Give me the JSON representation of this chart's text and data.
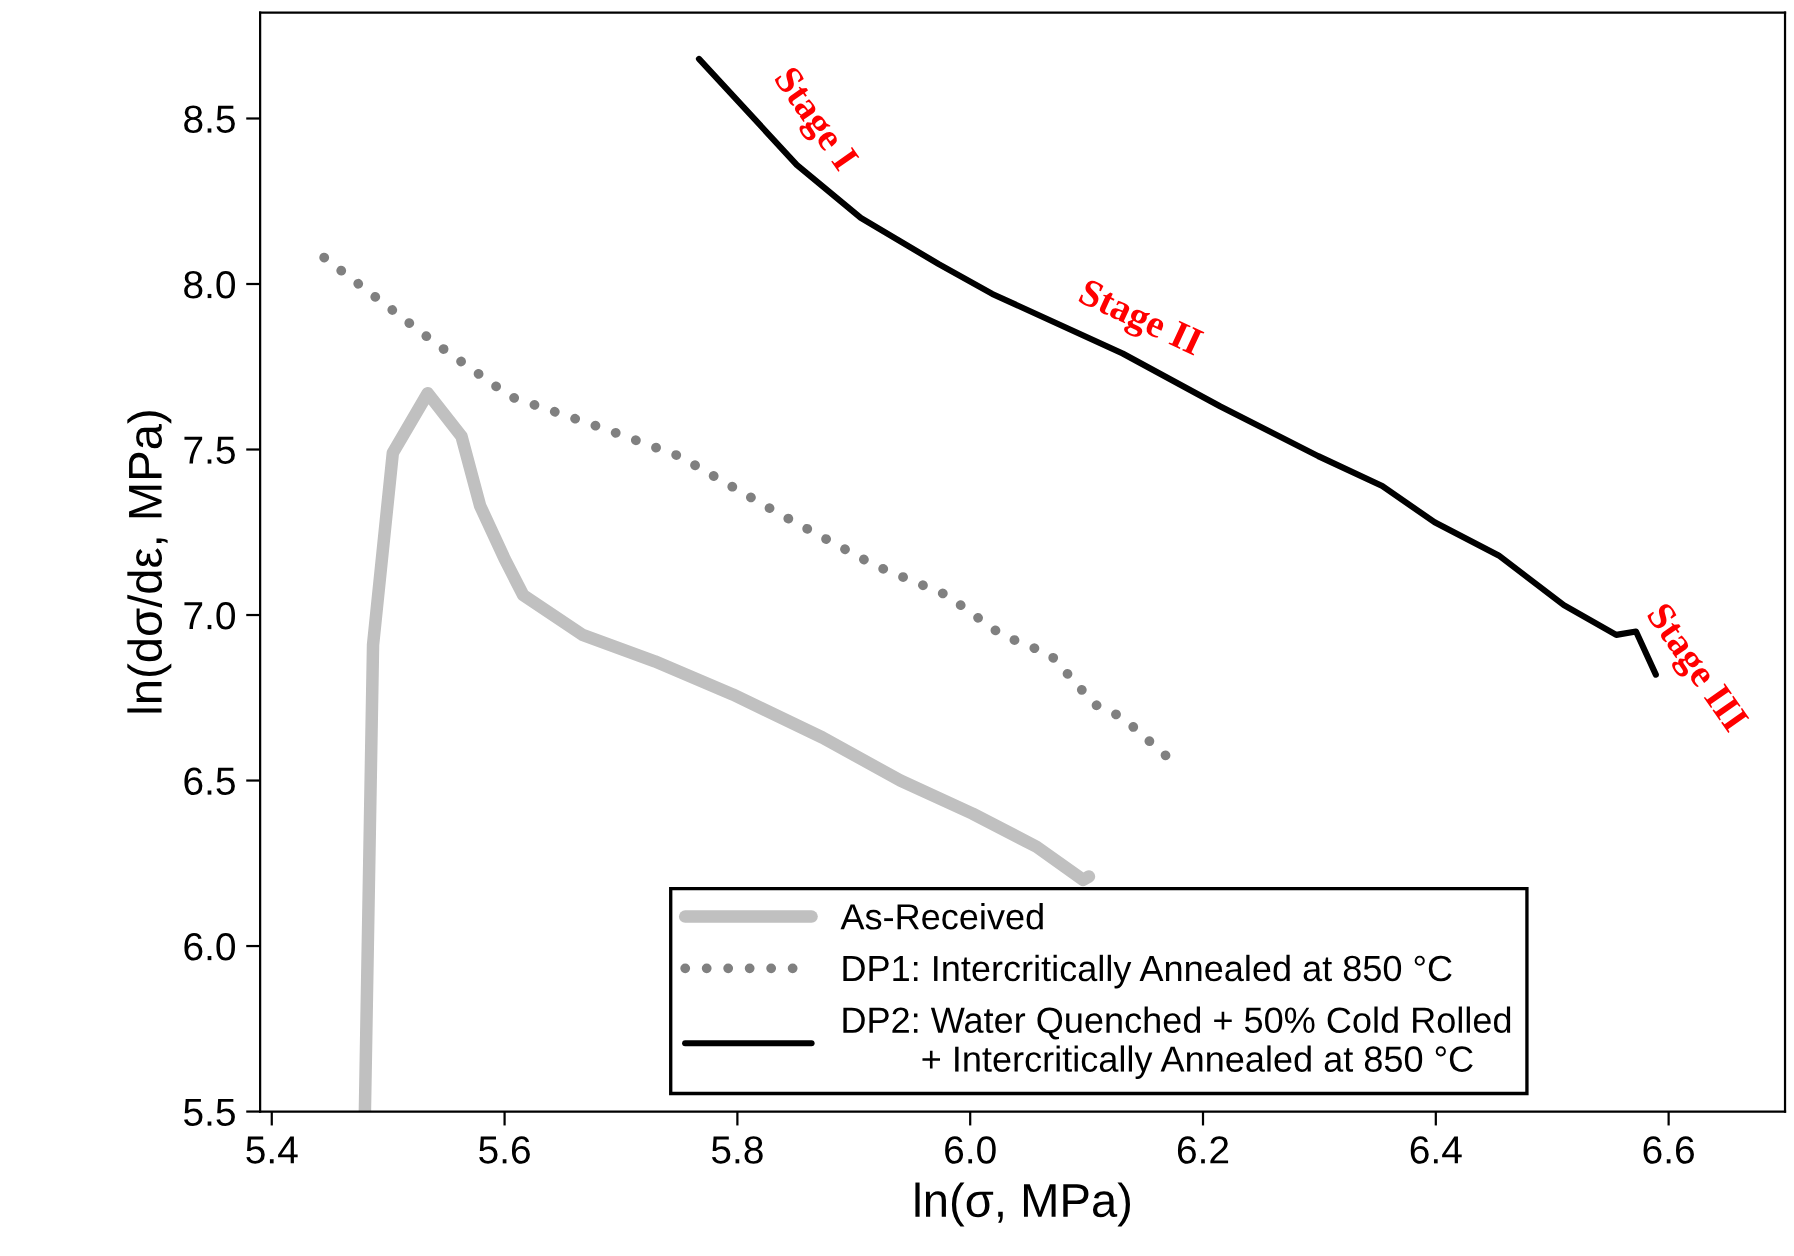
{
  "chart_data": {
    "type": "line",
    "xlabel": "ln(σ, MPa)",
    "ylabel": "ln(dσ/dε, MPa)",
    "xlim": [
      5.39,
      6.7
    ],
    "ylim": [
      5.5,
      8.82
    ],
    "xticks": [
      {
        "value": 5.4,
        "label": "5.4"
      },
      {
        "value": 5.6,
        "label": "5.6"
      },
      {
        "value": 5.8,
        "label": "5.8"
      },
      {
        "value": 6.0,
        "label": "6.0"
      },
      {
        "value": 6.2,
        "label": "6.2"
      },
      {
        "value": 6.4,
        "label": "6.4"
      },
      {
        "value": 6.6,
        "label": "6.6"
      }
    ],
    "yticks": [
      {
        "value": 5.5,
        "label": "5.5"
      },
      {
        "value": 6.0,
        "label": "6.0"
      },
      {
        "value": 6.5,
        "label": "6.5"
      },
      {
        "value": 7.0,
        "label": "7.0"
      },
      {
        "value": 7.5,
        "label": "7.5"
      },
      {
        "value": 8.0,
        "label": "8.0"
      },
      {
        "value": 8.5,
        "label": "8.5"
      }
    ],
    "grid": false,
    "legend": "bottom",
    "series": [
      {
        "name": "As-Received",
        "color": "#c0c0c0",
        "line_style": "solid",
        "x": [
          5.48,
          5.487,
          5.504,
          5.534,
          5.563,
          5.579,
          5.6,
          5.616,
          5.667,
          5.729,
          5.796,
          5.873,
          5.94,
          6.002,
          6.057,
          6.097,
          6.102
        ],
        "values": [
          5.5,
          6.91,
          7.49,
          7.67,
          7.54,
          7.33,
          7.17,
          7.06,
          6.94,
          6.86,
          6.76,
          6.63,
          6.5,
          6.4,
          6.3,
          6.2,
          6.21
        ]
      },
      {
        "name": "DP1: Intercritically Annealed at 850 °C",
        "color": "#808080",
        "line_style": "dotted",
        "x": [
          5.445,
          5.541,
          5.605,
          5.688,
          5.75,
          5.834,
          5.918,
          5.98,
          6.027,
          6.069,
          6.107,
          6.131,
          6.173
        ],
        "values": [
          8.08,
          7.82,
          7.66,
          7.56,
          7.48,
          7.31,
          7.15,
          7.06,
          6.94,
          6.88,
          6.73,
          6.69,
          6.56
        ]
      },
      {
        "name": "DP2: Water Quenched + 50% Cold Rolled\n        + Intercritically Annealed at 850 °C",
        "color": "#000000",
        "line_style": "solid",
        "x": [
          5.767,
          5.851,
          5.906,
          5.973,
          6.019,
          6.131,
          6.215,
          6.299,
          6.354,
          6.399,
          6.454,
          6.51,
          6.555,
          6.572,
          6.589
        ],
        "values": [
          8.68,
          8.36,
          8.2,
          8.06,
          7.97,
          7.79,
          7.63,
          7.48,
          7.39,
          7.28,
          7.18,
          7.03,
          6.94,
          6.95,
          6.82
        ]
      }
    ],
    "annotations": [
      {
        "text": "Stage I",
        "x": 5.851,
        "y": 8.36
      },
      {
        "text": "Stage II",
        "x": 6.131,
        "y": 7.79
      },
      {
        "text": "Stage III",
        "x": 6.589,
        "y": 6.82
      }
    ]
  }
}
